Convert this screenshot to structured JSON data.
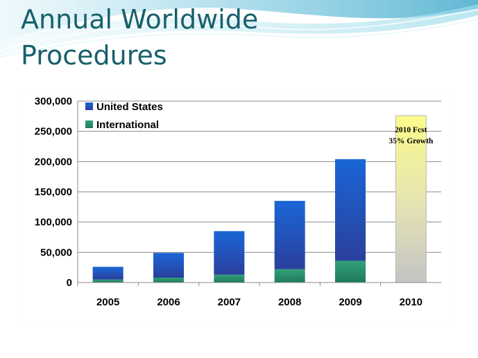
{
  "slide": {
    "title_line1": "Annual Worldwide",
    "title_line2": "Procedures",
    "accent_color": "#17606b"
  },
  "chart_data": {
    "type": "bar",
    "stacked": true,
    "categories": [
      "2005",
      "2006",
      "2007",
      "2008",
      "2009",
      "2010"
    ],
    "series": [
      {
        "name": "United States",
        "color": "#1f4fb5",
        "values": [
          21000,
          41000,
          72000,
          113000,
          168000,
          null
        ]
      },
      {
        "name": "International",
        "color": "#2a8a6a",
        "values": [
          5000,
          8000,
          13000,
          22000,
          36000,
          null
        ]
      }
    ],
    "forecast": {
      "category": "2010",
      "value": 276000,
      "color": "#f3f081",
      "label_line1": "2010 Fcst",
      "label_line2": "35% Growth"
    },
    "yticks": [
      0,
      50000,
      100000,
      150000,
      200000,
      250000,
      300000
    ],
    "ytick_labels": [
      "0",
      "50,000",
      "100,000",
      "150,000",
      "200,000",
      "250,000",
      "300,000"
    ],
    "ylim": [
      0,
      300000
    ],
    "grid": true,
    "legend_position": "top-left",
    "title": "",
    "xlabel": "",
    "ylabel": ""
  }
}
